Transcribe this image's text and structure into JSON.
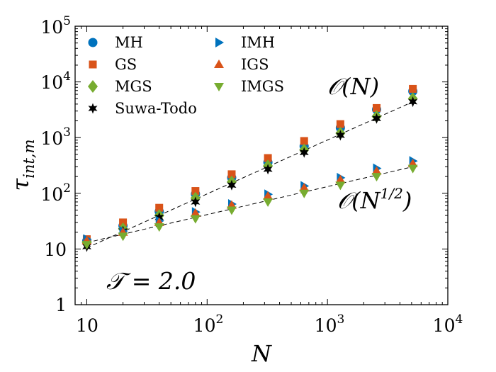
{
  "chart_data": {
    "type": "scatter",
    "title": "",
    "xlabel": "N",
    "ylabel": "τ_int,m",
    "xscale": "log",
    "yscale": "log",
    "xlim": [
      8,
      10000
    ],
    "ylim": [
      1,
      100000
    ],
    "grid": false,
    "legend_position": "top-left",
    "x_tick_labels": [
      "10",
      "10²",
      "10³",
      "10⁴"
    ],
    "y_tick_labels": [
      "1",
      "10",
      "10²",
      "10³",
      "10⁴",
      "10⁵"
    ],
    "annotation_temperature": "𝒯 = 2.0",
    "x": [
      10,
      20,
      40,
      80,
      160,
      320,
      640,
      1280,
      2560,
      5120
    ],
    "series": [
      {
        "name": "MH",
        "marker": "circle",
        "color": "#0072BD",
        "values": [
          14,
          26,
          47,
          97,
          190,
          360,
          700,
          1500,
          3200,
          6800
        ]
      },
      {
        "name": "GS",
        "marker": "square",
        "color": "#D95319",
        "values": [
          15,
          30,
          55,
          110,
          220,
          430,
          870,
          1750,
          3400,
          7500
        ]
      },
      {
        "name": "MGS",
        "marker": "diamond",
        "color": "#77AC30",
        "values": [
          13,
          23,
          40,
          82,
          160,
          310,
          600,
          1200,
          2400,
          5000
        ]
      },
      {
        "name": "Suwa-Todo",
        "marker": "star",
        "color": "#000000",
        "values": [
          11,
          21,
          37,
          70,
          140,
          270,
          540,
          1100,
          2200,
          4400
        ]
      },
      {
        "name": "IMH",
        "marker": "triangle-right",
        "color": "#0072BD",
        "values": [
          15,
          21,
          32,
          46,
          64,
          96,
          135,
          190,
          280,
          380
        ]
      },
      {
        "name": "IGS",
        "marker": "triangle-up",
        "color": "#D95319",
        "values": [
          14,
          20,
          30,
          44,
          61,
          89,
          125,
          175,
          250,
          340
        ]
      },
      {
        "name": "IMGS",
        "marker": "triangle-down",
        "color": "#77AC30",
        "values": [
          12,
          17,
          25,
          35,
          50,
          70,
          100,
          140,
          200,
          280
        ]
      }
    ],
    "fit_lines": [
      {
        "label": "𝒪(N)",
        "from": [
          10,
          10.5
        ],
        "to": [
          5120,
          4400
        ]
      },
      {
        "label": "𝒪(N",
        "label_exp": "1/2",
        "label_end": ")",
        "from": [
          10,
          13
        ],
        "to": [
          5120,
          300
        ]
      }
    ]
  }
}
